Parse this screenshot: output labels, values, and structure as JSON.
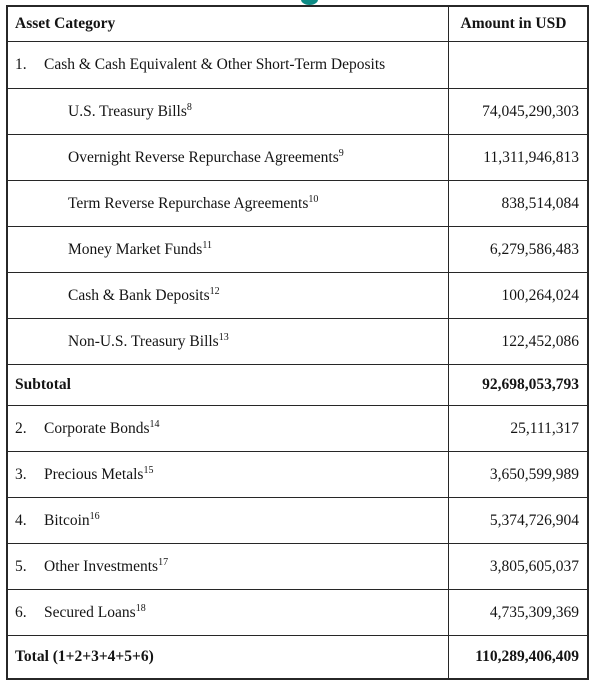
{
  "page": {
    "background_color": "#ffffff",
    "cropped_heading_fragment_color": "#0d8b85",
    "table_border_color": "#272727"
  },
  "table": {
    "header": {
      "asset_col": "Asset Category",
      "amount_col": "Amount in USD"
    },
    "rows": [
      {
        "num": "1.",
        "label": "Cash & Cash Equivalent & Other Short-Term Deposits",
        "sup": "",
        "amount": "",
        "style": "category"
      },
      {
        "num": "",
        "label": "U.S. Treasury Bills",
        "sup": "8",
        "amount": "74,045,290,303",
        "style": "sub"
      },
      {
        "num": "",
        "label": "Overnight Reverse Repurchase Agreements",
        "sup": "9",
        "amount": "11,311,946,813",
        "style": "sub"
      },
      {
        "num": "",
        "label": "Term Reverse Repurchase Agreements",
        "sup": "10",
        "amount": "838,514,084",
        "style": "sub"
      },
      {
        "num": "",
        "label": "Money Market Funds",
        "sup": "11",
        "amount": "6,279,586,483",
        "style": "sub"
      },
      {
        "num": "",
        "label": "Cash & Bank Deposits",
        "sup": "12",
        "amount": "100,264,024",
        "style": "sub"
      },
      {
        "num": "",
        "label": "Non-U.S. Treasury Bills",
        "sup": "13",
        "amount": "122,452,086",
        "style": "sub"
      },
      {
        "num": "",
        "label": "Subtotal",
        "sup": "",
        "amount": "92,698,053,793",
        "style": "subtotal"
      },
      {
        "num": "2.",
        "label": "Corporate Bonds",
        "sup": "14",
        "amount": "25,111,317",
        "style": "numbered"
      },
      {
        "num": "3.",
        "label": "Precious Metals",
        "sup": "15",
        "amount": "3,650,599,989",
        "style": "numbered"
      },
      {
        "num": "4.",
        "label": "Bitcoin",
        "sup": "16",
        "amount": "5,374,726,904",
        "style": "numbered"
      },
      {
        "num": "5.",
        "label": "Other Investments",
        "sup": "17",
        "amount": "3,805,605,037",
        "style": "numbered"
      },
      {
        "num": "6.",
        "label": "Secured Loans",
        "sup": "18",
        "amount": "4,735,309,369",
        "style": "numbered"
      },
      {
        "num": "",
        "label": "Total (1+2+3+4+5+6)",
        "sup": "",
        "amount": "110,289,406,409",
        "style": "total"
      }
    ]
  }
}
